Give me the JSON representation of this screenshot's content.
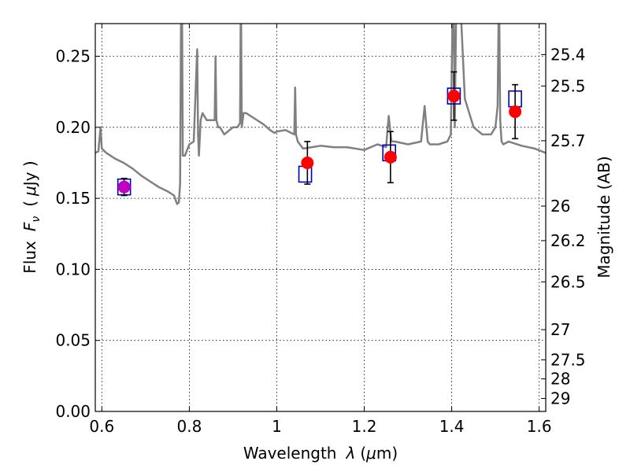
{
  "chart_data": {
    "type": "scatter",
    "title": "",
    "xlabel": "Wavelength",
    "xlabel_symbol": "λ",
    "xlabel_unit_open": "(",
    "xlabel_unit_mu": "μ",
    "xlabel_unit_rest": "m)",
    "ylabel": "Flux",
    "ylabel_symbol": "F",
    "ylabel_subscript": "ν",
    "ylabel_unit_open": "(",
    "ylabel_unit_mu": "μ",
    "ylabel_unit_rest": "Jy )",
    "y2label": "Magnitude (AB)",
    "xlim": [
      0.585,
      1.615
    ],
    "ylim": [
      0.0,
      0.273
    ],
    "xticks": [
      0.6,
      0.8,
      1.0,
      1.2,
      1.4,
      1.6
    ],
    "xtick_labels": [
      "0.6",
      "0.8",
      "1",
      "1.2",
      "1.4",
      "1.6"
    ],
    "yticks": [
      0.0,
      0.05,
      0.1,
      0.15,
      0.2,
      0.25
    ],
    "ytick_labels": [
      "0.00",
      "0.05",
      "0.10",
      "0.15",
      "0.20",
      "0.25"
    ],
    "y2ticks": [
      25.4,
      25.5,
      25.7,
      26,
      26.2,
      26.5,
      27,
      27.5,
      28,
      29
    ],
    "y2tick_labels": [
      "25.4",
      "25.5",
      "25.7",
      "26",
      "26.2",
      "26.5",
      "27",
      "27.5",
      "28",
      "29"
    ],
    "grid": true,
    "colors": {
      "model": "#808080",
      "observed": "#ff0000",
      "observed_first": "#c000c0",
      "model_box": "#0000cc",
      "errorbar": "#000000"
    },
    "observed_points": [
      {
        "x": 0.651,
        "y": 0.158,
        "yerr": 0.006
      },
      {
        "x": 1.07,
        "y": 0.175,
        "yerr": 0.015
      },
      {
        "x": 1.26,
        "y": 0.179,
        "yerr": 0.018
      },
      {
        "x": 1.405,
        "y": 0.222,
        "yerr": 0.017
      },
      {
        "x": 1.545,
        "y": 0.211,
        "yerr": 0.019
      }
    ],
    "model_boxes": [
      {
        "x": 0.651,
        "y": 0.158
      },
      {
        "x": 1.065,
        "y": 0.167
      },
      {
        "x": 1.257,
        "y": 0.182
      },
      {
        "x": 1.405,
        "y": 0.222
      },
      {
        "x": 1.545,
        "y": 0.22
      }
    ],
    "model_spectrum": {
      "x": [
        0.585,
        0.592,
        0.597,
        0.6,
        0.61,
        0.63,
        0.65,
        0.67,
        0.69,
        0.71,
        0.73,
        0.75,
        0.765,
        0.772,
        0.776,
        0.779,
        0.781,
        0.782,
        0.7835,
        0.785,
        0.79,
        0.8,
        0.81,
        0.818,
        0.82,
        0.822,
        0.826,
        0.83,
        0.84,
        0.85,
        0.858,
        0.86,
        0.862,
        0.866,
        0.87,
        0.88,
        0.9,
        0.91,
        0.916,
        0.918,
        0.92,
        0.924,
        0.93,
        0.95,
        0.97,
        0.985,
        0.995,
        1.0,
        1.02,
        1.04,
        1.042,
        1.044,
        1.048,
        1.06,
        1.08,
        1.1,
        1.13,
        1.16,
        1.2,
        1.23,
        1.25,
        1.256,
        1.262,
        1.27,
        1.3,
        1.33,
        1.338,
        1.345,
        1.35,
        1.37,
        1.39,
        1.398,
        1.402,
        1.404,
        1.407,
        1.41,
        1.413,
        1.418,
        1.43,
        1.45,
        1.47,
        1.49,
        1.5,
        1.505,
        1.508,
        1.511,
        1.514,
        1.518,
        1.53,
        1.56,
        1.59,
        1.615
      ],
      "y": [
        0.182,
        0.183,
        0.2,
        0.185,
        0.182,
        0.178,
        0.175,
        0.171,
        0.166,
        0.162,
        0.158,
        0.155,
        0.152,
        0.146,
        0.147,
        0.16,
        0.27,
        0.3,
        0.28,
        0.18,
        0.18,
        0.188,
        0.19,
        0.255,
        0.195,
        0.18,
        0.205,
        0.21,
        0.205,
        0.205,
        0.205,
        0.25,
        0.205,
        0.2,
        0.2,
        0.195,
        0.2,
        0.2,
        0.203,
        0.3,
        0.2,
        0.21,
        0.21,
        0.206,
        0.202,
        0.198,
        0.196,
        0.197,
        0.198,
        0.195,
        0.228,
        0.195,
        0.19,
        0.185,
        0.186,
        0.187,
        0.186,
        0.186,
        0.184,
        0.188,
        0.186,
        0.208,
        0.19,
        0.19,
        0.188,
        0.19,
        0.215,
        0.19,
        0.188,
        0.188,
        0.19,
        0.195,
        0.28,
        0.3,
        0.2,
        0.28,
        0.3,
        0.3,
        0.22,
        0.2,
        0.195,
        0.195,
        0.2,
        0.215,
        0.3,
        0.205,
        0.19,
        0.188,
        0.19,
        0.187,
        0.185,
        0.182
      ]
    }
  }
}
